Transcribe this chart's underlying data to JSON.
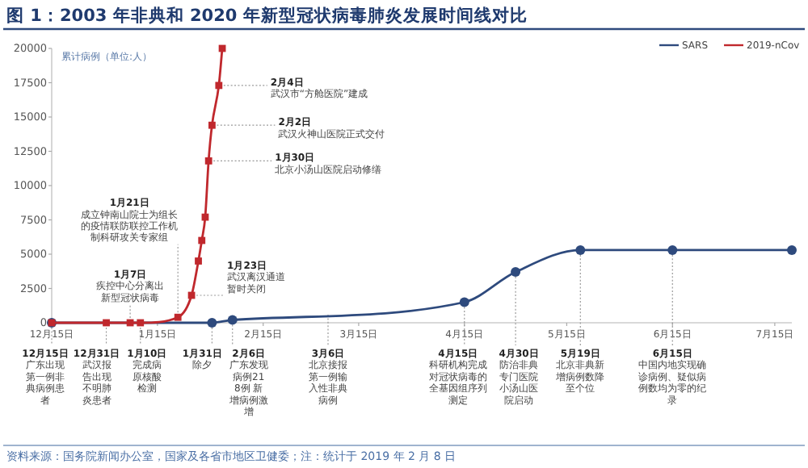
{
  "chart_data": {
    "type": "line",
    "title": "图 1：2003 年非典和 2020 年新型冠状病毒肺炎发展时间线对比",
    "ylabel": "累计病例（单位:人）",
    "xlim": [
      "2002-12-15",
      "2003-07-20"
    ],
    "xticks": [
      {
        "value": "2002-12-15",
        "label": "12月15日"
      },
      {
        "value": "2003-01-15",
        "label": "1月15日"
      },
      {
        "value": "2003-02-15",
        "label": "2月15日"
      },
      {
        "value": "2003-03-15",
        "label": "3月15日"
      },
      {
        "value": "2003-04-15",
        "label": "4月15日"
      },
      {
        "value": "2003-05-15",
        "label": "5月15日"
      },
      {
        "value": "2003-06-15",
        "label": "6月15日"
      },
      {
        "value": "2003-07-15",
        "label": "7月15日"
      }
    ],
    "ylim": [
      0,
      20000
    ],
    "yticks": [
      0,
      2500,
      5000,
      7500,
      10000,
      12500,
      15000,
      17500,
      20000
    ],
    "legend": "top right",
    "series": [
      {
        "name": "SARS",
        "color": "#2e4a7d",
        "marker": "circle",
        "x": [
          "2002-12-15",
          "2003-01-31",
          "2003-02-06",
          "2003-04-15",
          "2003-04-30",
          "2003-05-19",
          "2003-06-15",
          "2003-07-20"
        ],
        "values": [
          0,
          0,
          200,
          1500,
          3700,
          5300,
          5300,
          5300
        ]
      },
      {
        "name": "2019-nCov",
        "color": "#c0282d",
        "marker": "square",
        "x": [
          "2002-12-15",
          "2002-12-31",
          "2003-01-07",
          "2003-01-10",
          "2003-01-21",
          "2003-01-25",
          "2003-01-27",
          "2003-01-28",
          "2003-01-29",
          "2003-01-30",
          "2003-01-31",
          "2003-02-02",
          "2003-02-03"
        ],
        "values": [
          0,
          0,
          0,
          0,
          400,
          2000,
          4500,
          6000,
          7700,
          11800,
          14400,
          17300,
          20000
        ]
      }
    ],
    "annotations": [
      {
        "text": "2月4日",
        "x": "2003-02-02",
        "y": 17300
      },
      {
        "text": "武汉市“方舱医院”建成",
        "x": "2003-02-02",
        "y": 17300
      },
      {
        "text": "2月2日",
        "x": "2003-01-31",
        "y": 14400
      },
      {
        "text": "武汉火神山医院正式交付",
        "x": "2003-01-31",
        "y": 14400
      },
      {
        "text": "1月30日",
        "x": "2003-01-30",
        "y": 11800
      },
      {
        "text": "北京小汤山医院启动修缮",
        "x": "2003-01-30",
        "y": 11800
      },
      "1月21日",
      {
        "text": "成立钟南山院士为组长的疫情联防联控工作机制科研攻关专家组",
        "x": "2003-01-21",
        "y": 400
      },
      "1月7日",
      {
        "text": "疾控中心分离出新型冠状病毒",
        "x": "2003-01-07",
        "y": 0
      },
      "1月23日",
      {
        "text": "武汉离汉通道暂时关闭",
        "x": "2003-01-25",
        "y": 2000
      },
      {
        "text": "12月15日",
        "x": "2002-12-15",
        "y": 0
      },
      "广东出现第一例非典病例患者",
      {
        "text": "12月31日",
        "x": "2002-12-31",
        "y": 0
      },
      "武汉报告出现不明肺炎患者",
      {
        "text": "1月10日",
        "x": "2003-01-10",
        "y": 0
      },
      "完成病原核酸检测",
      {
        "text": "1月31日",
        "x": "2003-01-31",
        "y": 0
      },
      "除夕",
      {
        "text": "2月6日",
        "x": "2003-02-06",
        "y": 200
      },
      "广东发现病例218例 新增病例激增",
      "3月6日",
      "北京接报第一例输入性非典病例",
      {
        "text": "4月15日",
        "x": "2003-04-15",
        "y": 1500
      },
      "科研机构完成对冠状病毒的全基因组序列测定",
      {
        "text": "4月30日",
        "x": "2003-04-30",
        "y": 3700
      },
      "防治非典专门医院小汤山医院启动",
      {
        "text": "5月19日",
        "x": "2003-05-19",
        "y": 5300
      },
      "北京非典新增病例数降至个位",
      {
        "text": "6月15日",
        "x": "2003-06-15",
        "y": 5300
      },
      "中国内地实现确诊病例、疑似病例数均为零的纪录",
      "资料来源：国务院新闻办公室，国家及各省市地区卫健委；注：统计于 2019 年 2 月 8 日"
    ]
  }
}
